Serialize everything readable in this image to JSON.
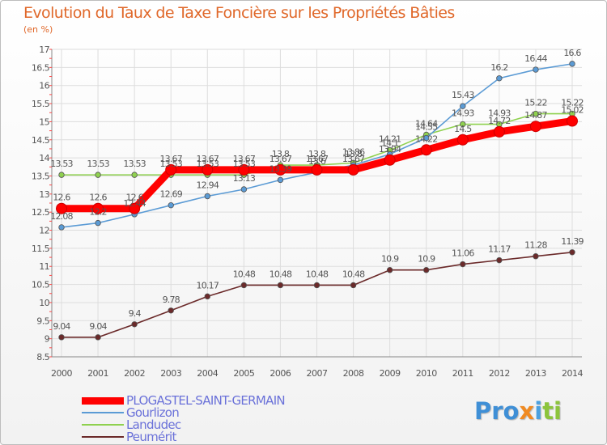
{
  "title": "Evolution du Taux de Taxe Foncière sur les Propriétés Bâties",
  "subtitle": "(en %)",
  "logo": {
    "p1": "Pro",
    "p2": "x",
    "p3": "i",
    "p4": "ti"
  },
  "colors": {
    "title": "#e0682a",
    "axis_text": "#555555",
    "grid": "#dddddd",
    "legend_text": "#6a71d9"
  },
  "chart_data": {
    "type": "line",
    "title": "Evolution du Taux de Taxe Foncière sur les Propriétés Bâties",
    "ylabel": "(en %)",
    "xlabel": "",
    "ylim": [
      8.5,
      17
    ],
    "grid": true,
    "legend_position": "bottom-left",
    "categories": [
      "2000",
      "2001",
      "2002",
      "2003",
      "2004",
      "2005",
      "2006",
      "2007",
      "2008",
      "2009",
      "2010",
      "2011",
      "2012",
      "2013",
      "2014"
    ],
    "y_ticks": [
      "8.5",
      "9",
      "9.5",
      "10",
      "10.5",
      "11",
      "11.5",
      "12",
      "12.5",
      "13",
      "13.5",
      "14",
      "14.5",
      "15",
      "15.5",
      "16",
      "16.5",
      "17"
    ],
    "series": [
      {
        "name": "PLOGASTEL-SAINT-GERMAIN",
        "color": "#ff0000",
        "values": [
          12.6,
          12.6,
          12.6,
          13.67,
          13.67,
          13.67,
          13.67,
          13.67,
          13.67,
          13.94,
          14.22,
          14.5,
          14.72,
          14.87,
          15.02
        ],
        "labels": [
          "12.6",
          "12.6",
          "12.6",
          "13.67",
          "13.67",
          "13.67",
          "13.67",
          "13.67",
          "13.67",
          "13.94",
          "14.22",
          "14.5",
          "14.72",
          "14.87",
          "15.02"
        ]
      },
      {
        "name": "Gourlizon",
        "color": "#5b9bd5",
        "values": [
          12.08,
          12.2,
          12.44,
          12.69,
          12.94,
          13.13,
          13.39,
          13.6,
          13.8,
          14.1,
          14.55,
          15.43,
          16.2,
          16.44,
          16.6
        ],
        "labels": [
          "12.08",
          "12.2",
          "12.44",
          "12.69",
          "12.94",
          "13.13",
          "13.39",
          "13.6",
          "13.8",
          "14.1",
          "14.55",
          "15.43",
          "16.2",
          "16.44",
          "16.6"
        ]
      },
      {
        "name": "Landudec",
        "color": "#8fd14f",
        "values": [
          13.53,
          13.53,
          13.53,
          13.53,
          13.53,
          13.53,
          13.8,
          13.8,
          13.86,
          14.21,
          14.64,
          14.93,
          14.93,
          15.22,
          15.22
        ],
        "labels": [
          "13.53",
          "13.53",
          "13.53",
          "13.53",
          "13.53",
          "13.53",
          "13.8",
          "13.8",
          "13.86",
          "14.21",
          "14.64",
          "14.93",
          "14.93",
          "15.22",
          "15.22"
        ]
      },
      {
        "name": "Peumérit",
        "color": "#6b2a2a",
        "values": [
          9.04,
          9.04,
          9.4,
          9.78,
          10.17,
          10.48,
          10.48,
          10.48,
          10.48,
          10.9,
          10.9,
          11.06,
          11.17,
          11.28,
          11.39
        ],
        "labels": [
          "9.04",
          "9.04",
          "9.4",
          "9.78",
          "10.17",
          "10.48",
          "10.48",
          "10.48",
          "10.48",
          "10.9",
          "10.9",
          "11.06",
          "11.17",
          "11.28",
          "11.39"
        ]
      }
    ]
  }
}
